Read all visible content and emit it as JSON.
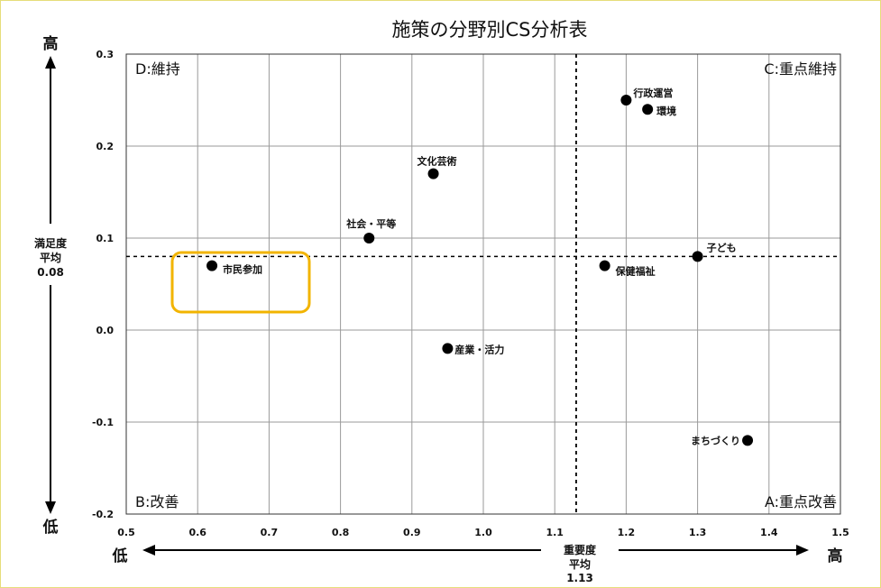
{
  "chart_data": {
    "type": "scatter",
    "title": "施策の分野別CS分析表",
    "xlim": [
      0.5,
      1.5
    ],
    "ylim": [
      -0.2,
      0.3
    ],
    "x_ticks": [
      "0.5",
      "0.6",
      "0.7",
      "0.8",
      "0.9",
      "1.0",
      "1.1",
      "1.2",
      "1.3",
      "1.4",
      "1.5"
    ],
    "y_ticks": [
      "-0.2",
      "-0.1",
      "0.0",
      "0.1",
      "0.2",
      "0.3"
    ],
    "grid": true,
    "points": [
      {
        "label": "行政運営",
        "x": 1.2,
        "y": 0.25
      },
      {
        "label": "環境",
        "x": 1.23,
        "y": 0.24
      },
      {
        "label": "文化芸術",
        "x": 0.93,
        "y": 0.17
      },
      {
        "label": "社会・平等",
        "x": 0.84,
        "y": 0.1
      },
      {
        "label": "子ども",
        "x": 1.3,
        "y": 0.08
      },
      {
        "label": "市民参加",
        "x": 0.62,
        "y": 0.07
      },
      {
        "label": "保健福祉",
        "x": 1.17,
        "y": 0.07
      },
      {
        "label": "産業・活力",
        "x": 0.95,
        "y": -0.02
      },
      {
        "label": "まちづくり",
        "x": 1.37,
        "y": -0.12
      }
    ],
    "x_mean": 1.13,
    "y_mean": 0.08,
    "quadrants": {
      "top_left": "D:維持",
      "top_right": "C:重点維持",
      "bottom_left": "B:改善",
      "bottom_right": "A:重点改善"
    },
    "x_axis": {
      "low": "低",
      "high": "高",
      "mean_label_1": "重要度",
      "mean_label_2": "平均",
      "mean_value": "1.13"
    },
    "y_axis": {
      "low": "低",
      "high": "高",
      "mean_label_1": "満足度",
      "mean_label_2": "平均",
      "mean_value": "0.08"
    },
    "highlight": {
      "label": "市民参加",
      "color": "#f2b400"
    }
  }
}
